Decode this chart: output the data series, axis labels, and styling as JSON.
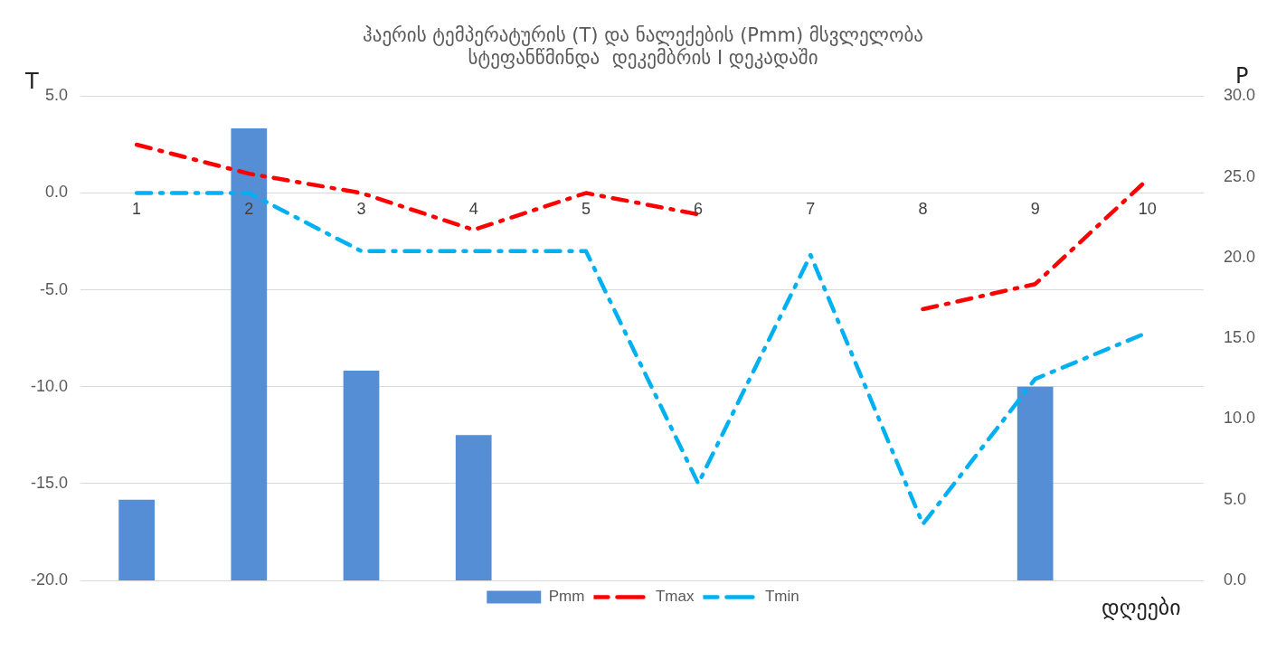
{
  "chart_data": {
    "type": "bar",
    "title": "ჰაერის ტემპერატურის (T) და ნალექების (Pmm) მსვლელობა\nსტეფანწმინდა  დეკემბრის I დეკადაში",
    "xlabel": "დღეები",
    "ylabel": "T",
    "y2label": "P",
    "categories": [
      "1",
      "2",
      "3",
      "4",
      "5",
      "6",
      "7",
      "8",
      "9",
      "10"
    ],
    "series": [
      {
        "name": "Pmm",
        "axis": "y2",
        "color": "#558ed5",
        "values": [
          5,
          28,
          13,
          9,
          null,
          null,
          null,
          null,
          12,
          null
        ]
      },
      {
        "name": "Tmax",
        "type": "line",
        "color": "#ff0000",
        "line_style": "dashed",
        "values": [
          2.5,
          1.0,
          0.0,
          -1.9,
          0.0,
          -1.1,
          null,
          -6.0,
          -4.7,
          0.7
        ]
      },
      {
        "name": "Tmin",
        "type": "line",
        "color": "#00b0f0",
        "line_style": "dashed",
        "values": [
          0.0,
          0.0,
          -3.0,
          -3.0,
          -3.0,
          -15.0,
          -3.2,
          -17.1,
          -9.6,
          -7.2
        ]
      }
    ],
    "ylim": [
      -20,
      5
    ],
    "yticks": [
      {
        "value": -20,
        "label": "-20.0"
      },
      {
        "value": -15,
        "label": "-15.0"
      },
      {
        "value": -10,
        "label": "-10.0"
      },
      {
        "value": -5,
        "label": "-5.0"
      },
      {
        "value": 0,
        "label": "0.0"
      },
      {
        "value": 5,
        "label": "5.0"
      }
    ],
    "y2lim": [
      0,
      30
    ],
    "y2ticks": [
      {
        "value": 0,
        "label": "0.0"
      },
      {
        "value": 5,
        "label": "5.0"
      },
      {
        "value": 10,
        "label": "10.0"
      },
      {
        "value": 15,
        "label": "15.0"
      },
      {
        "value": 20,
        "label": "20.0"
      },
      {
        "value": 25,
        "label": "25.0"
      },
      {
        "value": 30,
        "label": "30.0"
      }
    ],
    "grid": "y",
    "legend": "bottom",
    "marker": "none"
  }
}
